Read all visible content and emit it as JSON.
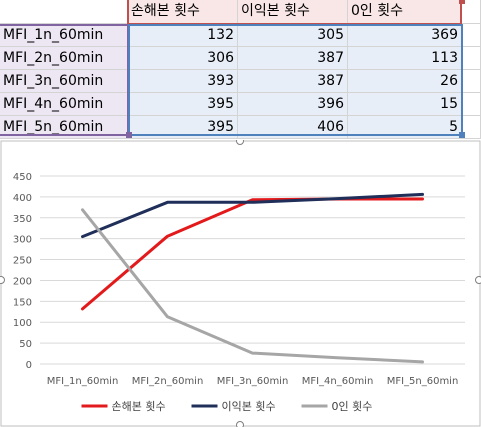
{
  "table": {
    "headers": [
      "손해본 횟수",
      "이익본 횟수",
      "0인 횟수"
    ],
    "rows": [
      {
        "label": "MFI_1n_60min",
        "values": [
          "132",
          "305",
          "369"
        ]
      },
      {
        "label": "MFI_2n_60min",
        "values": [
          "306",
          "387",
          "113"
        ]
      },
      {
        "label": "MFI_3n_60min",
        "values": [
          "393",
          "387",
          "26"
        ]
      },
      {
        "label": "MFI_4n_60min",
        "values": [
          "395",
          "396",
          "15"
        ]
      },
      {
        "label": "MFI_5n_60min",
        "values": [
          "395",
          "406",
          "5"
        ]
      }
    ]
  },
  "chart_data": {
    "type": "line",
    "categories": [
      "MFI_1n_60min",
      "MFI_2n_60min",
      "MFI_3n_60min",
      "MFI_4n_60min",
      "MFI_5n_60min"
    ],
    "series": [
      {
        "name": "손해본 횟수",
        "values": [
          132,
          306,
          393,
          395,
          395
        ],
        "color": "#e31a1c"
      },
      {
        "name": "이익본 횟수",
        "values": [
          305,
          387,
          387,
          396,
          406
        ],
        "color": "#1f2f5a"
      },
      {
        "name": "0인 횟수",
        "values": [
          369,
          113,
          26,
          15,
          5
        ],
        "color": "#a6a6a6"
      }
    ],
    "y_ticks": [
      "0",
      "50",
      "100",
      "150",
      "200",
      "250",
      "300",
      "350",
      "400",
      "450"
    ],
    "ylim": [
      0,
      450
    ],
    "grid": true,
    "legend_position": "bottom"
  }
}
